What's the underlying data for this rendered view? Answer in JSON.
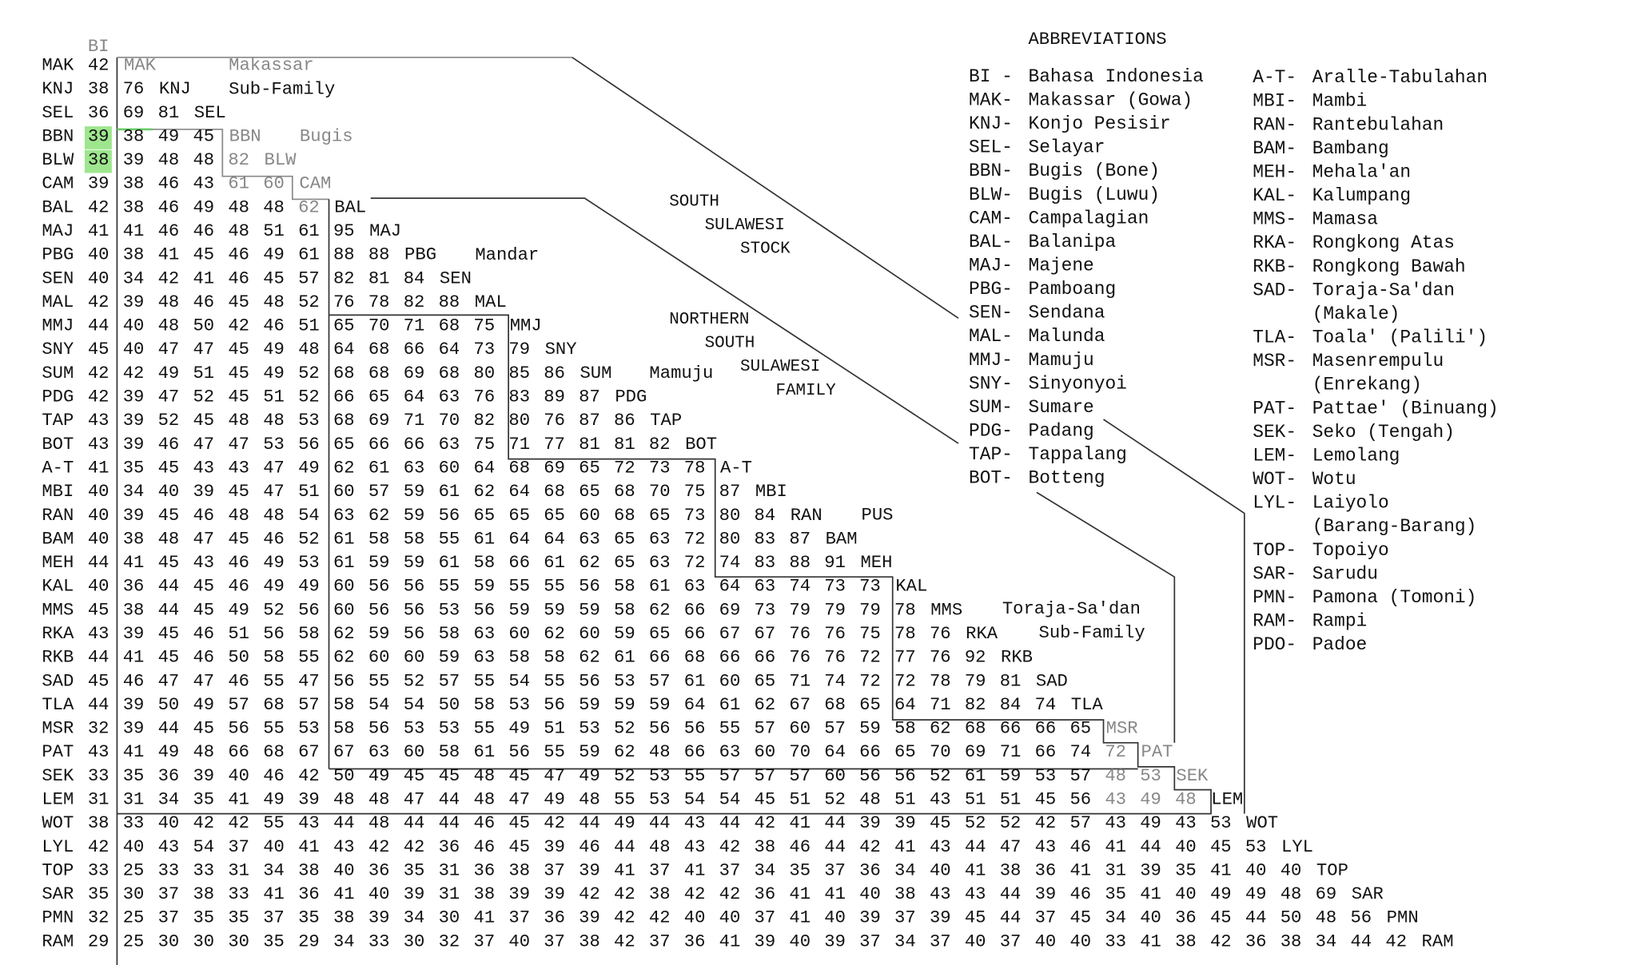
{
  "matrix": {
    "header": "BI",
    "rows": [
      {
        "code": "MAK",
        "values": [
          42
        ]
      },
      {
        "code": "KNJ",
        "values": [
          38,
          76
        ]
      },
      {
        "code": "SEL",
        "values": [
          36,
          69,
          81
        ]
      },
      {
        "code": "BBN",
        "values": [
          39,
          38,
          49,
          45
        ]
      },
      {
        "code": "BLW",
        "values": [
          38,
          39,
          48,
          48,
          82
        ]
      },
      {
        "code": "CAM",
        "values": [
          39,
          38,
          46,
          43,
          61,
          60
        ]
      },
      {
        "code": "BAL",
        "values": [
          42,
          38,
          46,
          49,
          48,
          48,
          62
        ]
      },
      {
        "code": "MAJ",
        "values": [
          41,
          41,
          46,
          46,
          48,
          51,
          61,
          95
        ]
      },
      {
        "code": "PBG",
        "values": [
          40,
          38,
          41,
          45,
          46,
          49,
          61,
          88,
          88
        ]
      },
      {
        "code": "SEN",
        "values": [
          40,
          34,
          42,
          41,
          46,
          45,
          57,
          82,
          81,
          84
        ]
      },
      {
        "code": "MAL",
        "values": [
          42,
          39,
          48,
          46,
          45,
          48,
          52,
          76,
          78,
          82,
          88
        ]
      },
      {
        "code": "MMJ",
        "values": [
          44,
          40,
          48,
          50,
          42,
          46,
          51,
          65,
          70,
          71,
          68,
          75
        ]
      },
      {
        "code": "SNY",
        "values": [
          45,
          40,
          47,
          47,
          45,
          49,
          48,
          64,
          68,
          66,
          64,
          73,
          79
        ]
      },
      {
        "code": "SUM",
        "values": [
          42,
          42,
          49,
          51,
          45,
          49,
          52,
          68,
          68,
          69,
          68,
          80,
          85,
          86
        ]
      },
      {
        "code": "PDG",
        "values": [
          42,
          39,
          47,
          52,
          45,
          51,
          52,
          66,
          65,
          64,
          63,
          76,
          83,
          89,
          87
        ]
      },
      {
        "code": "TAP",
        "values": [
          43,
          39,
          52,
          45,
          48,
          48,
          53,
          68,
          69,
          71,
          70,
          82,
          80,
          76,
          87,
          86
        ]
      },
      {
        "code": "BOT",
        "values": [
          43,
          39,
          46,
          47,
          47,
          53,
          56,
          65,
          66,
          66,
          63,
          75,
          71,
          77,
          81,
          81,
          82
        ]
      },
      {
        "code": "A-T",
        "values": [
          41,
          35,
          45,
          43,
          43,
          47,
          49,
          62,
          61,
          63,
          60,
          64,
          68,
          69,
          65,
          72,
          73,
          78
        ]
      },
      {
        "code": "MBI",
        "values": [
          40,
          34,
          40,
          39,
          45,
          47,
          51,
          60,
          57,
          59,
          61,
          62,
          64,
          68,
          65,
          68,
          70,
          75,
          87
        ]
      },
      {
        "code": "RAN",
        "values": [
          40,
          39,
          45,
          46,
          48,
          48,
          54,
          63,
          62,
          59,
          56,
          65,
          65,
          65,
          60,
          68,
          65,
          73,
          80,
          84
        ]
      },
      {
        "code": "BAM",
        "values": [
          40,
          38,
          48,
          47,
          45,
          46,
          52,
          61,
          58,
          58,
          55,
          61,
          64,
          64,
          63,
          65,
          63,
          72,
          80,
          83,
          87
        ]
      },
      {
        "code": "MEH",
        "values": [
          44,
          41,
          45,
          43,
          46,
          49,
          53,
          61,
          59,
          59,
          61,
          58,
          66,
          61,
          62,
          65,
          63,
          72,
          74,
          83,
          88,
          91
        ]
      },
      {
        "code": "KAL",
        "values": [
          40,
          36,
          44,
          45,
          46,
          49,
          49,
          60,
          56,
          56,
          55,
          59,
          55,
          55,
          56,
          58,
          61,
          63,
          64,
          63,
          74,
          73,
          73
        ]
      },
      {
        "code": "MMS",
        "values": [
          45,
          38,
          44,
          45,
          49,
          52,
          56,
          60,
          56,
          56,
          53,
          56,
          59,
          59,
          59,
          58,
          62,
          66,
          69,
          73,
          79,
          79,
          79,
          78
        ]
      },
      {
        "code": "RKA",
        "values": [
          43,
          39,
          45,
          46,
          51,
          56,
          58,
          62,
          59,
          56,
          58,
          63,
          60,
          62,
          60,
          59,
          65,
          66,
          67,
          67,
          76,
          76,
          75,
          78,
          76
        ]
      },
      {
        "code": "RKB",
        "values": [
          44,
          41,
          45,
          46,
          50,
          58,
          55,
          62,
          60,
          60,
          59,
          63,
          58,
          58,
          62,
          61,
          66,
          68,
          66,
          66,
          76,
          76,
          72,
          77,
          76,
          92
        ]
      },
      {
        "code": "SAD",
        "values": [
          45,
          46,
          47,
          47,
          46,
          55,
          47,
          56,
          55,
          52,
          57,
          55,
          54,
          55,
          56,
          53,
          57,
          61,
          60,
          65,
          71,
          74,
          72,
          72,
          78,
          79,
          81
        ]
      },
      {
        "code": "TLA",
        "values": [
          44,
          39,
          50,
          49,
          57,
          68,
          57,
          58,
          54,
          54,
          50,
          58,
          53,
          56,
          59,
          59,
          59,
          64,
          61,
          62,
          67,
          68,
          65,
          64,
          71,
          82,
          84,
          74
        ]
      },
      {
        "code": "MSR",
        "values": [
          32,
          39,
          44,
          45,
          56,
          55,
          53,
          58,
          56,
          53,
          53,
          55,
          49,
          51,
          53,
          52,
          56,
          56,
          55,
          57,
          60,
          57,
          59,
          58,
          62,
          68,
          66,
          66,
          65
        ]
      },
      {
        "code": "PAT",
        "values": [
          43,
          41,
          49,
          48,
          66,
          68,
          67,
          67,
          63,
          60,
          58,
          61,
          56,
          55,
          59,
          62,
          48,
          66,
          63,
          60,
          70,
          64,
          66,
          65,
          70,
          69,
          71,
          66,
          74,
          72
        ]
      },
      {
        "code": "SEK",
        "values": [
          33,
          35,
          36,
          39,
          40,
          46,
          42,
          50,
          49,
          45,
          45,
          48,
          45,
          47,
          49,
          52,
          53,
          55,
          57,
          57,
          57,
          60,
          56,
          56,
          52,
          61,
          59,
          53,
          57,
          48,
          53
        ]
      },
      {
        "code": "LEM",
        "values": [
          31,
          31,
          34,
          35,
          41,
          49,
          39,
          48,
          48,
          47,
          44,
          48,
          47,
          49,
          48,
          55,
          53,
          54,
          54,
          45,
          51,
          52,
          48,
          51,
          43,
          51,
          51,
          45,
          56,
          43,
          49,
          48
        ]
      },
      {
        "code": "WOT",
        "values": [
          38,
          33,
          40,
          42,
          42,
          55,
          43,
          44,
          48,
          44,
          44,
          46,
          45,
          42,
          44,
          49,
          44,
          43,
          44,
          42,
          41,
          44,
          39,
          39,
          45,
          52,
          52,
          42,
          57,
          43,
          49,
          43,
          53
        ]
      },
      {
        "code": "LYL",
        "values": [
          42,
          40,
          43,
          54,
          37,
          40,
          41,
          43,
          42,
          42,
          36,
          46,
          45,
          39,
          46,
          44,
          48,
          43,
          42,
          38,
          46,
          44,
          42,
          41,
          43,
          44,
          47,
          43,
          46,
          41,
          44,
          40,
          45,
          53
        ]
      },
      {
        "code": "TOP",
        "values": [
          33,
          25,
          33,
          33,
          31,
          34,
          38,
          40,
          36,
          35,
          31,
          36,
          38,
          37,
          39,
          41,
          37,
          41,
          37,
          34,
          35,
          37,
          36,
          34,
          40,
          41,
          38,
          36,
          41,
          31,
          39,
          35,
          41,
          40,
          40
        ]
      },
      {
        "code": "SAR",
        "values": [
          35,
          30,
          37,
          38,
          33,
          41,
          36,
          41,
          40,
          39,
          31,
          38,
          39,
          39,
          42,
          42,
          38,
          42,
          42,
          36,
          41,
          41,
          40,
          38,
          43,
          43,
          44,
          39,
          46,
          35,
          41,
          40,
          49,
          49,
          48,
          69
        ]
      },
      {
        "code": "PMN",
        "values": [
          32,
          25,
          37,
          35,
          35,
          37,
          35,
          38,
          39,
          34,
          30,
          41,
          37,
          36,
          39,
          42,
          42,
          40,
          40,
          37,
          41,
          40,
          39,
          37,
          39,
          45,
          44,
          37,
          45,
          34,
          40,
          36,
          45,
          44,
          50,
          48,
          56
        ]
      },
      {
        "code": "RAM",
        "values": [
          29,
          25,
          30,
          30,
          30,
          35,
          29,
          34,
          33,
          30,
          32,
          37,
          40,
          37,
          38,
          42,
          37,
          36,
          41,
          39,
          40,
          39,
          37,
          34,
          37,
          40,
          37,
          40,
          40,
          33,
          41,
          38,
          42,
          36,
          38,
          34,
          44,
          42
        ]
      }
    ],
    "group_labels": [
      "Makassar",
      "Sub-Family",
      "Bugis",
      "Mandar",
      "Mamuju",
      "PUS",
      "Toraja-Sa'dan",
      "Sub-Family"
    ],
    "stock_labels": [
      [
        "SOUTH",
        "SULAWESI",
        "STOCK"
      ],
      [
        "NORTHERN",
        "SOUTH",
        "SULAWESI",
        "FAMILY"
      ]
    ]
  },
  "abbreviations": {
    "title": "ABBREVIATIONS",
    "columns": [
      [
        {
          "code": "BI -",
          "name": [
            "Bahasa Indonesia"
          ]
        },
        {
          "code": "MAK-",
          "name": [
            "Makassar (Gowa)"
          ]
        },
        {
          "code": "KNJ-",
          "name": [
            "Konjo Pesisir"
          ]
        },
        {
          "code": "SEL-",
          "name": [
            "Selayar"
          ]
        },
        {
          "code": "BBN-",
          "name": [
            "Bugis (Bone)"
          ]
        },
        {
          "code": "BLW-",
          "name": [
            "Bugis (Luwu)"
          ]
        },
        {
          "code": "CAM-",
          "name": [
            "Campalagian"
          ]
        },
        {
          "code": "BAL-",
          "name": [
            "Balanipa"
          ]
        },
        {
          "code": "MAJ-",
          "name": [
            "Majene"
          ]
        },
        {
          "code": "PBG-",
          "name": [
            "Pamboang"
          ]
        },
        {
          "code": "SEN-",
          "name": [
            "Sendana"
          ]
        },
        {
          "code": "MAL-",
          "name": [
            "Malunda"
          ]
        },
        {
          "code": "MMJ-",
          "name": [
            "Mamuju"
          ]
        },
        {
          "code": "SNY-",
          "name": [
            "Sinyonyoi"
          ]
        },
        {
          "code": "SUM-",
          "name": [
            "Sumare"
          ]
        },
        {
          "code": "PDG-",
          "name": [
            "Padang"
          ]
        },
        {
          "code": "TAP-",
          "name": [
            "Tappalang"
          ]
        },
        {
          "code": "BOT-",
          "name": [
            "Botteng"
          ]
        }
      ],
      [
        {
          "code": "A-T-",
          "name": [
            "Aralle-Tabulahan"
          ]
        },
        {
          "code": "MBI-",
          "name": [
            "Mambi"
          ]
        },
        {
          "code": "RAN-",
          "name": [
            "Rantebulahan"
          ]
        },
        {
          "code": "BAM-",
          "name": [
            "Bambang"
          ]
        },
        {
          "code": "MEH-",
          "name": [
            "Mehala'an"
          ]
        },
        {
          "code": "KAL-",
          "name": [
            "Kalumpang"
          ]
        },
        {
          "code": "MMS-",
          "name": [
            "Mamasa"
          ]
        },
        {
          "code": "RKA-",
          "name": [
            "Rongkong Atas"
          ]
        },
        {
          "code": "RKB-",
          "name": [
            "Rongkong Bawah"
          ]
        },
        {
          "code": "SAD-",
          "name": [
            "Toraja-Sa'dan",
            "(Makale)"
          ]
        },
        {
          "code": "TLA-",
          "name": [
            "Toala' (Palili')"
          ]
        },
        {
          "code": "MSR-",
          "name": [
            "Masenrempulu",
            "(Enrekang)"
          ]
        },
        {
          "code": "PAT-",
          "name": [
            "Pattae' (Binuang)"
          ]
        },
        {
          "code": "SEK-",
          "name": [
            "Seko (Tengah)"
          ]
        },
        {
          "code": "LEM-",
          "name": [
            "Lemolang"
          ]
        },
        {
          "code": "WOT-",
          "name": [
            "Wotu"
          ]
        },
        {
          "code": "LYL-",
          "name": [
            "Laiyolo",
            "(Barang-Barang)"
          ]
        },
        {
          "code": "TOP-",
          "name": [
            "Topoiyo"
          ]
        },
        {
          "code": "SAR-",
          "name": [
            "Sarudu"
          ]
        },
        {
          "code": "PMN-",
          "name": [
            "Pamona (Tomoni)"
          ]
        },
        {
          "code": "RAM-",
          "name": [
            "Rampi"
          ]
        },
        {
          "code": "PDO-",
          "name": [
            "Padoe"
          ]
        }
      ]
    ]
  }
}
